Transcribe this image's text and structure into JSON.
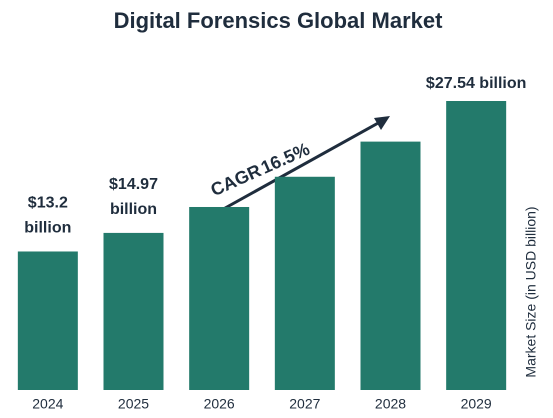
{
  "chart_data": {
    "type": "bar",
    "title": "Digital Forensics Global Market",
    "y_axis_label": "Market Size (in USD billion)",
    "categories": [
      "2024",
      "2025",
      "2026",
      "2027",
      "2028",
      "2029"
    ],
    "values": [
      13.2,
      14.97,
      17.44,
      20.32,
      23.67,
      27.54
    ],
    "value_labels": [
      "$13.2 billion",
      "$14.97 billion",
      null,
      null,
      null,
      "$27.54 billion"
    ],
    "value_label_colors": [
      "#1f2d3d",
      "#3cba82",
      null,
      null,
      null,
      "#1f2d3d"
    ],
    "color": "#237a6b",
    "annotation": {
      "label": "CAGR",
      "value": 16.5,
      "value_label": "16.5%",
      "color": "#1f2d3d",
      "value_color": "#3cba82"
    }
  }
}
